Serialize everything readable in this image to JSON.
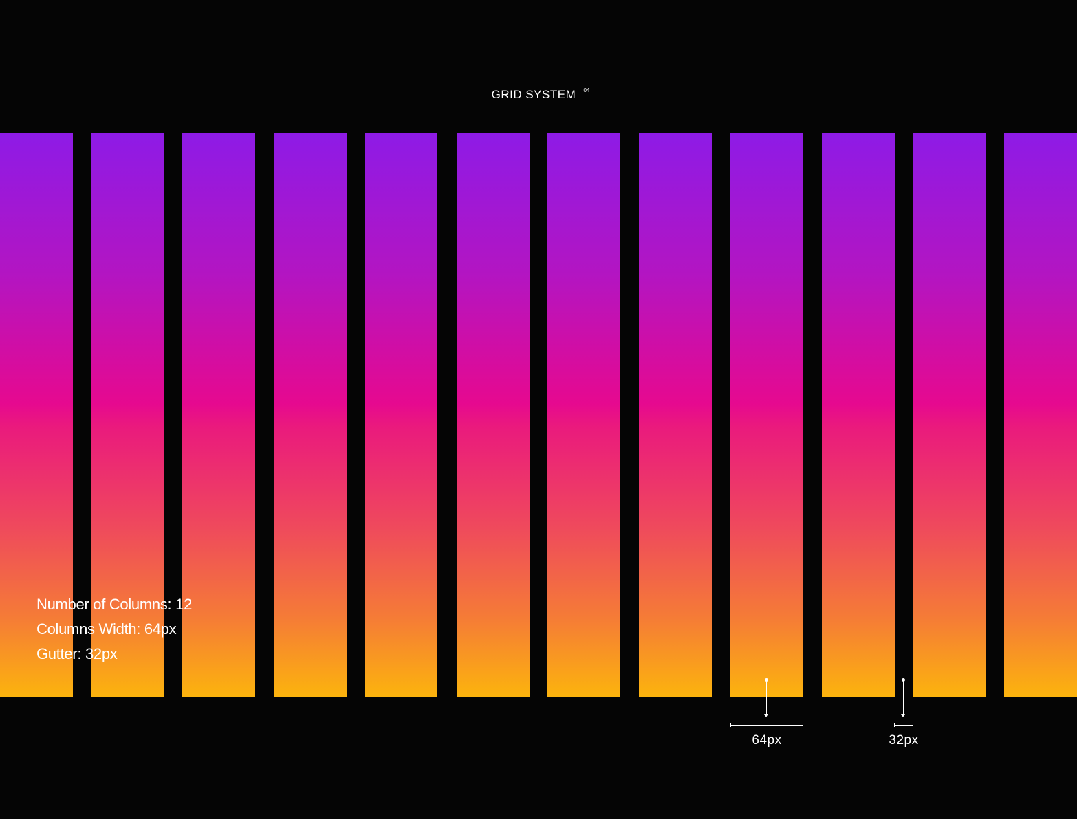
{
  "header": {
    "title": "GRID SYSTEM",
    "superscript": "04"
  },
  "grid": {
    "column_count": 12,
    "gradient_colors": [
      "#8e1be6",
      "#b315c2",
      "#e6098f",
      "#ef4a5c",
      "#f57c36",
      "#fcb40d"
    ],
    "background": "#050505"
  },
  "info": {
    "columns_line": "Number of Columns: 12",
    "width_line": "Columns Width: 64px",
    "gutter_line": "Gutter: 32px"
  },
  "measurements": {
    "column_width_label": "64px",
    "gutter_label": "32px"
  }
}
